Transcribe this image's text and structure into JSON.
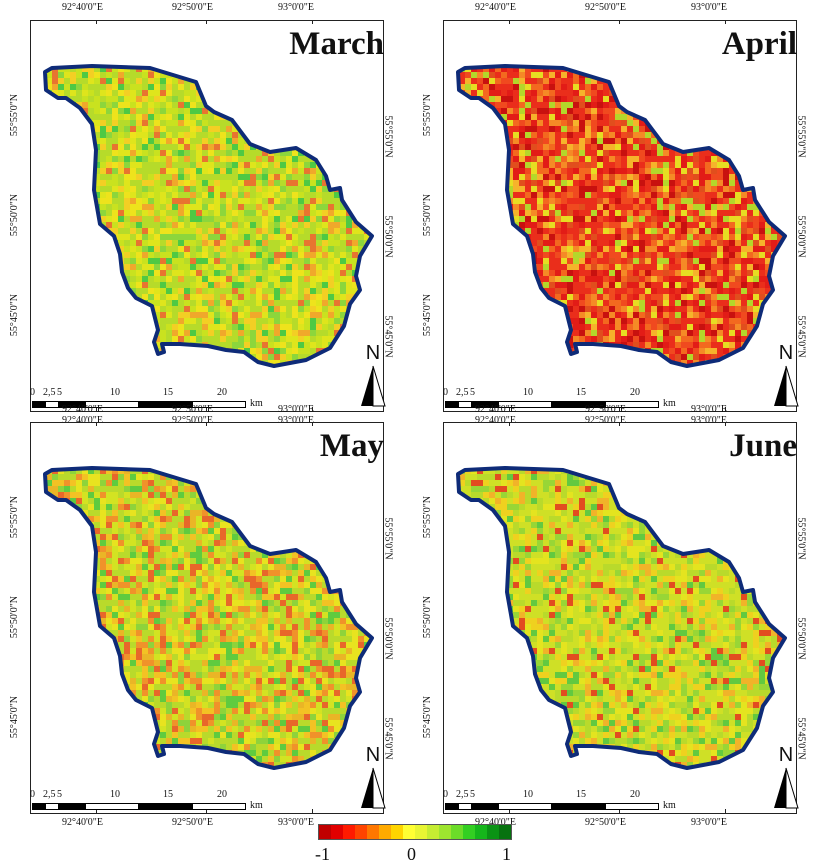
{
  "panels": [
    {
      "month": "March",
      "palette": [
        "#b6db2a",
        "#c9e21f",
        "#dfe51c",
        "#eee31c",
        "#f3cf24",
        "#8cd63c",
        "#f0a82b",
        "#4ec944",
        "#e87430"
      ]
    },
    {
      "month": "April",
      "palette": [
        "#ea2e1b",
        "#e21c17",
        "#f04a1f",
        "#f3691f",
        "#c8110f",
        "#f58a26",
        "#f6b32b",
        "#e7dd22",
        "#b4d72a",
        "#e14e1d"
      ]
    },
    {
      "month": "May",
      "palette": [
        "#b9da2b",
        "#d3e322",
        "#e8e31f",
        "#f3c224",
        "#f0922a",
        "#e8672a",
        "#8ed33b",
        "#5fcb3f",
        "#eab526"
      ]
    },
    {
      "month": "June",
      "palette": [
        "#cfe026",
        "#b9da2b",
        "#e4e41f",
        "#efd11f",
        "#98d636",
        "#f1b329",
        "#62c940",
        "#e24c20"
      ]
    }
  ],
  "axis": {
    "lon_ticks": [
      "92°40'0\"E",
      "92°50'0\"E",
      "93°0'0\"E"
    ],
    "lat_ticks": [
      "55°55'0\"N",
      "55°50'0\"N",
      "55°45'0\"N"
    ]
  },
  "scalebar": {
    "labels": [
      "0",
      "2,5",
      "5",
      "10",
      "15",
      "20"
    ],
    "unit": "km"
  },
  "north_label": "N",
  "legend": {
    "colors": [
      "#c00000",
      "#e20000",
      "#ff1a00",
      "#ff4400",
      "#ff7700",
      "#ffaa00",
      "#ffd500",
      "#ffff33",
      "#e8f533",
      "#c5ec32",
      "#9ee52f",
      "#6cdc29",
      "#33cf22",
      "#15b61b",
      "#0a9314",
      "#07720f"
    ],
    "min_label": "-1",
    "mid_label": "0",
    "max_label": "1"
  }
}
